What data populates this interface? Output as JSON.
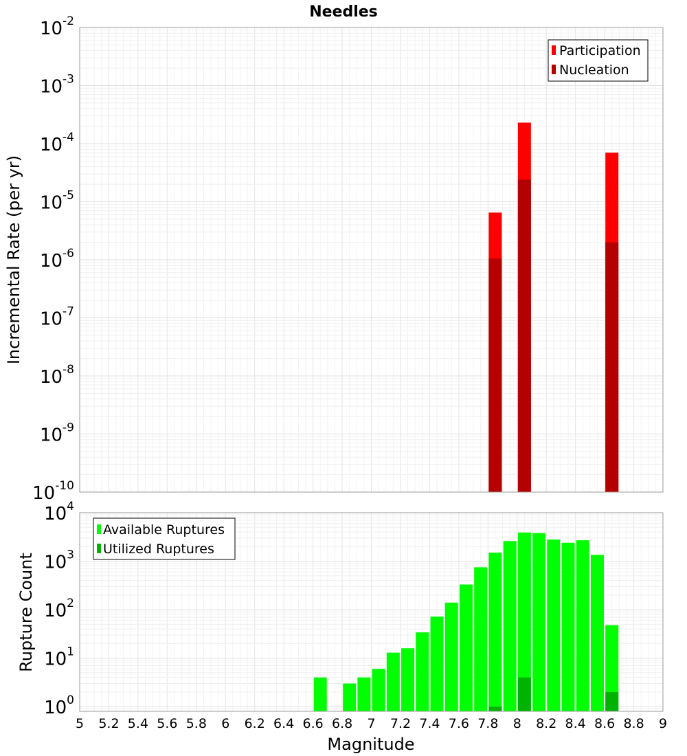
{
  "chart_data": [
    {
      "type": "bar",
      "title": "Needles",
      "ylabel": "Incremental Rate (per yr)",
      "xlabel": "",
      "yscale": "log",
      "ylim": [
        1e-10,
        0.01
      ],
      "xlim": [
        5,
        9
      ],
      "yticks": [
        {
          "base": "10",
          "exp": "-10",
          "value": 1e-10
        },
        {
          "base": "10",
          "exp": "-9",
          "value": 1e-09
        },
        {
          "base": "10",
          "exp": "-8",
          "value": 1e-08
        },
        {
          "base": "10",
          "exp": "-7",
          "value": 1e-07
        },
        {
          "base": "10",
          "exp": "-6",
          "value": 1e-06
        },
        {
          "base": "10",
          "exp": "-5",
          "value": 1e-05
        },
        {
          "base": "10",
          "exp": "-4",
          "value": 0.0001
        },
        {
          "base": "10",
          "exp": "-3",
          "value": 0.001
        },
        {
          "base": "10",
          "exp": "-2",
          "value": 0.01
        }
      ],
      "legend": {
        "position": "top-right",
        "entries": [
          "Participation",
          "Nucleation"
        ]
      },
      "colors": {
        "Participation": "#ff0000",
        "Nucleation": "#b30000"
      },
      "grid": true,
      "series": [
        {
          "name": "Participation",
          "x": [
            7.85,
            8.05,
            8.65
          ],
          "values": [
            6.5e-06,
            0.00023,
            7e-05
          ]
        },
        {
          "name": "Nucleation",
          "x": [
            7.85,
            8.05,
            8.65
          ],
          "values": [
            1.05e-06,
            2.4e-05,
            2e-06
          ]
        }
      ]
    },
    {
      "type": "bar",
      "title": "",
      "ylabel": "Rupture Count",
      "xlabel": "Magnitude",
      "yscale": "log",
      "ylim": [
        0.8,
        10000
      ],
      "xlim": [
        5,
        9
      ],
      "yticks": [
        {
          "base": "10",
          "exp": "0",
          "value": 1
        },
        {
          "base": "10",
          "exp": "1",
          "value": 10
        },
        {
          "base": "10",
          "exp": "2",
          "value": 100
        },
        {
          "base": "10",
          "exp": "3",
          "value": 1000
        },
        {
          "base": "10",
          "exp": "4",
          "value": 10000
        }
      ],
      "xticks": [
        "5",
        "5.2",
        "5.4",
        "5.6",
        "5.8",
        "6",
        "6.2",
        "6.4",
        "6.6",
        "6.8",
        "7",
        "7.2",
        "7.4",
        "7.6",
        "7.8",
        "8",
        "8.2",
        "8.4",
        "8.6",
        "8.8",
        "9"
      ],
      "legend": {
        "position": "top-left",
        "entries": [
          "Available Ruptures",
          "Utilized Ruptures"
        ]
      },
      "colors": {
        "Available Ruptures": "#00ff00",
        "Utilized Ruptures": "#00b300"
      },
      "grid": true,
      "series": [
        {
          "name": "Available Ruptures",
          "x": [
            6.65,
            6.85,
            6.95,
            7.05,
            7.15,
            7.25,
            7.35,
            7.45,
            7.55,
            7.65,
            7.75,
            7.85,
            7.95,
            8.05,
            8.15,
            8.25,
            8.35,
            8.45,
            8.55,
            8.65
          ],
          "values": [
            4,
            3,
            4,
            6,
            13,
            16,
            34,
            72,
            140,
            330,
            750,
            1500,
            2600,
            3900,
            3800,
            2800,
            2400,
            2700,
            1350,
            48
          ]
        },
        {
          "name": "Utilized Ruptures",
          "x": [
            7.85,
            8.05,
            8.65
          ],
          "values": [
            1,
            4,
            2
          ]
        }
      ]
    }
  ]
}
